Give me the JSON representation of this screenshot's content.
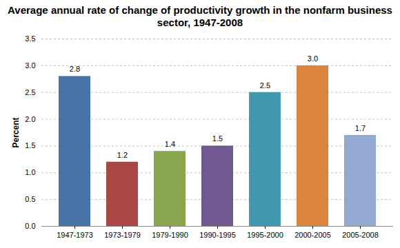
{
  "chart_data": {
    "type": "bar",
    "title": "Average annual rate of change of productivity growth in the nonfarm business sector, 1947-2008",
    "y_label": "Percent",
    "categories": [
      "1947-1973",
      "1973-1979",
      "1979-1990",
      "1990-1995",
      "1995-2000",
      "2000-2005",
      "2005-2008"
    ],
    "values": [
      2.8,
      1.2,
      1.4,
      1.5,
      2.5,
      3.0,
      1.7
    ],
    "value_labels": [
      "2.8",
      "1.2",
      "1.4",
      "1.5",
      "2.5",
      "3.0",
      "1.7"
    ],
    "colors": [
      "#4572a7",
      "#aa4643",
      "#89a54e",
      "#71588f",
      "#4198af",
      "#db843d",
      "#93a9cf"
    ],
    "ylim": [
      0,
      3.5
    ],
    "yticks": [
      {
        "value": 0,
        "label": "0.0"
      },
      0.5,
      {
        "value": 1,
        "label": "1.0"
      },
      1.5,
      {
        "value": 2,
        "label": "2.0"
      },
      2.5,
      {
        "value": 3,
        "label": "3.0"
      },
      3.5
    ],
    "grid": true,
    "data_labels": true
  }
}
